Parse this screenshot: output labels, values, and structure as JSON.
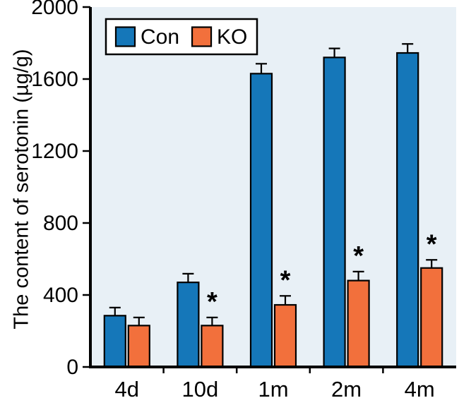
{
  "chart_data": {
    "type": "bar",
    "title": "",
    "xlabel": "",
    "ylabel": "The content of serotonin (µg/g)",
    "categories": [
      "4d",
      "10d",
      "1m",
      "2m",
      "4m"
    ],
    "series": [
      {
        "name": "con",
        "label": "Con",
        "color": "#1577b9",
        "values": [
          285,
          470,
          1630,
          1720,
          1745
        ],
        "errors": [
          45,
          48,
          55,
          50,
          50
        ],
        "sig": [
          false,
          false,
          false,
          false,
          false
        ]
      },
      {
        "name": "ko",
        "label": "KO",
        "color": "#f2703c",
        "values": [
          230,
          230,
          345,
          480,
          550
        ],
        "errors": [
          45,
          45,
          50,
          50,
          45
        ],
        "sig": [
          false,
          true,
          true,
          true,
          true
        ]
      }
    ],
    "ylim": [
      0,
      2000
    ],
    "yticks": [
      0,
      400,
      800,
      1200,
      1600,
      2000
    ],
    "plot_bg": "#e8f0f6",
    "axis_color": "#000000",
    "legend_position": "top-left",
    "grid": false,
    "significance_marker": "*"
  }
}
